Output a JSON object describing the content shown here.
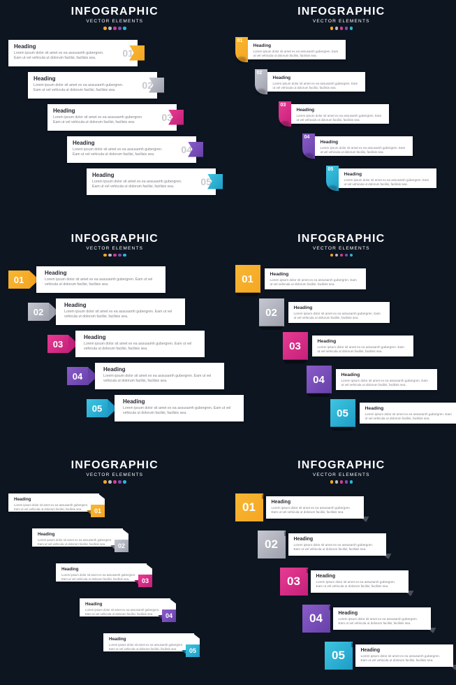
{
  "header": {
    "title": "INFOGRAPHIC",
    "subtitle": "VECTOR ELEMENTS"
  },
  "dots": [
    "#f5a623",
    "#b9b9c4",
    "#d93b8a",
    "#7a4fb0",
    "#2cb4d8"
  ],
  "colors": {
    "c1": [
      "#f7b733",
      "#f5a623"
    ],
    "c2": [
      "#c5c7d0",
      "#9da0ac"
    ],
    "c3": [
      "#e73b92",
      "#c4207a"
    ],
    "c4": [
      "#8a5cc9",
      "#6740a8"
    ],
    "c5": [
      "#3ec5e0",
      "#1e9cc7"
    ]
  },
  "item": {
    "heading": "Heading",
    "body": "Lorem ipsum dolor sit amet ex ea assusamh gubergren. Eam ut vel vehicula ut dolorum facilisi, facilisis sea."
  },
  "numbers": [
    "01",
    "02",
    "03",
    "04",
    "05"
  ],
  "panels": [
    {
      "style": "A",
      "offsets": [
        0,
        28,
        56,
        84,
        112
      ]
    },
    {
      "style": "B",
      "offsets": [
        0,
        28,
        62,
        96,
        130
      ]
    },
    {
      "style": "C",
      "offsets": [
        0,
        28,
        56,
        84,
        112
      ]
    },
    {
      "style": "D",
      "offsets": [
        0,
        34,
        68,
        102,
        136
      ]
    },
    {
      "style": "E",
      "offsets": [
        0,
        34,
        68,
        102,
        136
      ]
    },
    {
      "style": "F",
      "offsets": [
        0,
        32,
        64,
        96,
        128
      ]
    }
  ],
  "background": "#0d1521",
  "card_bg": "#ffffff",
  "heading_color": "#2a2a36",
  "body_color": "#808088",
  "fonts": {
    "title": 16,
    "subtitle": 6.5,
    "heading": 8,
    "body": 5.2,
    "number_large": 15
  }
}
